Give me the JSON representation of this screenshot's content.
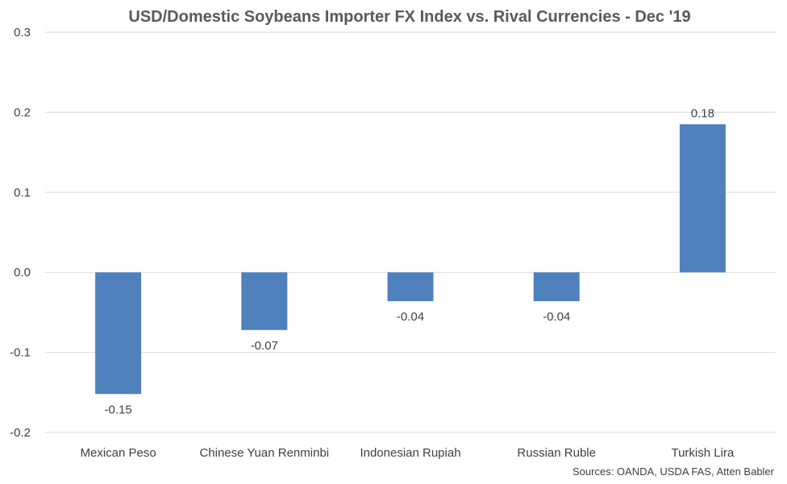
{
  "chart_data": {
    "type": "bar",
    "title": "USD/Domestic Soybeans Importer FX Index vs. Rival Currencies - Dec '19",
    "categories": [
      "Mexican Peso",
      "Chinese Yuan Renminbi",
      "Indonesian Rupiah",
      "Russian Ruble",
      "Turkish Lira"
    ],
    "values": [
      -0.152,
      -0.072,
      -0.036,
      -0.036,
      0.185
    ],
    "data_labels": [
      "-0.15",
      "-0.07",
      "-0.04",
      "-0.04",
      "0.18"
    ],
    "yticks": [
      "0.3",
      "0.2",
      "0.1",
      "0.0",
      "-0.1",
      "-0.2"
    ],
    "ytick_values": [
      0.3,
      0.2,
      0.1,
      0.0,
      -0.1,
      -0.2
    ],
    "ylim": [
      -0.2,
      0.3
    ],
    "xlabel": "",
    "ylabel": "",
    "grid": true,
    "bar_color": "#4f81bd",
    "source": "Sources: OANDA, USDA FAS, Atten Babler"
  }
}
